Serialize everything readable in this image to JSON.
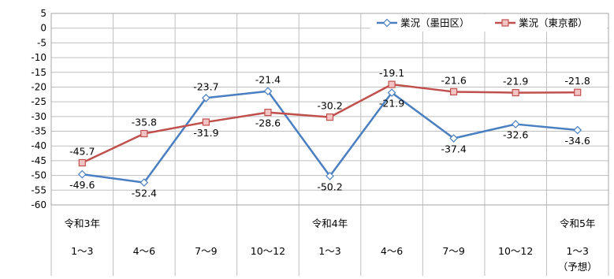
{
  "chart_data": {
    "type": "line",
    "title": "",
    "xlabel": "",
    "ylabel": "",
    "ylim": [
      -60,
      5
    ],
    "yticks": [
      5,
      0,
      -5,
      -10,
      -15,
      -20,
      -25,
      -30,
      -35,
      -40,
      -45,
      -50,
      -55,
      -60
    ],
    "grid": true,
    "legend_position": "top-right",
    "categories": [
      {
        "year": "令和3年",
        "quarter": "1～3",
        "note": ""
      },
      {
        "year": "",
        "quarter": "4～6",
        "note": ""
      },
      {
        "year": "",
        "quarter": "7～9",
        "note": ""
      },
      {
        "year": "",
        "quarter": "10～12",
        "note": ""
      },
      {
        "year": "令和4年",
        "quarter": "1～3",
        "note": ""
      },
      {
        "year": "",
        "quarter": "4～6",
        "note": ""
      },
      {
        "year": "",
        "quarter": "7～9",
        "note": ""
      },
      {
        "year": "",
        "quarter": "10～12",
        "note": ""
      },
      {
        "year": "令和5年",
        "quarter": "1～3",
        "note": "（予想）"
      }
    ],
    "series": [
      {
        "name": "業況（墨田区）",
        "color": "#4a7fc1",
        "marker": "diamond",
        "values": [
          -49.6,
          -52.4,
          -23.7,
          -21.4,
          -50.2,
          -21.9,
          -37.4,
          -32.6,
          -34.6
        ],
        "labels": [
          "-49.6",
          "-52.4",
          "-23.7",
          "-21.4",
          "-50.2",
          "-21.9",
          "-37.4",
          "-32.6",
          "-34.6"
        ]
      },
      {
        "name": "業況（東京都）",
        "color": "#c0504d",
        "marker": "square",
        "values": [
          -45.7,
          -35.8,
          -31.9,
          -28.6,
          -30.2,
          -19.1,
          -21.6,
          -21.9,
          -21.8
        ],
        "labels": [
          "-45.7",
          "-35.8",
          "-31.9",
          "-28.6",
          "-30.2",
          "-19.1",
          "-21.6",
          "-21.9",
          "-21.8"
        ]
      }
    ]
  }
}
